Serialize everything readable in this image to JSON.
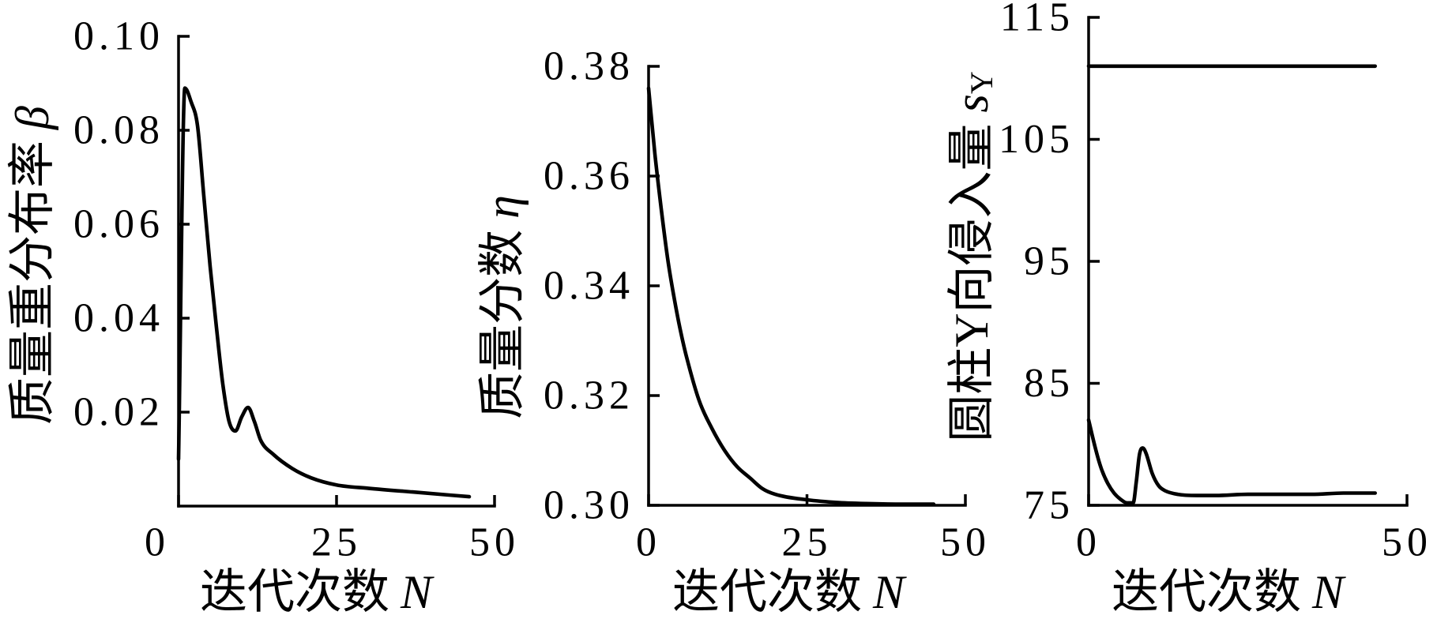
{
  "figure": {
    "background": "#ffffff"
  },
  "colors": {
    "line": "#000000",
    "axis": "#000000"
  },
  "chart_data": [
    {
      "type": "line",
      "xlabel": "迭代次数",
      "xlabel_var": "N",
      "ylabel": "质量重分布率",
      "ylabel_var": "β",
      "xlim": [
        0,
        50
      ],
      "ylim": [
        0,
        0.1
      ],
      "xticks": [
        0,
        25,
        50
      ],
      "xticklabels": [
        "0",
        "25",
        "50"
      ],
      "yticks": [
        0.02,
        0.04,
        0.06,
        0.08,
        0.1
      ],
      "yticklabels": [
        "0.02",
        "0.04",
        "0.06",
        "0.08",
        "0.10"
      ],
      "grid": false,
      "series": [
        {
          "x": [
            0,
            1,
            2,
            3,
            4,
            5,
            6,
            7,
            8,
            9,
            10,
            11,
            12,
            13,
            15,
            18,
            21,
            25,
            30,
            37,
            46
          ],
          "y": [
            0.01,
            0.089,
            0.086,
            0.081,
            0.066,
            0.051,
            0.038,
            0.026,
            0.018,
            0.016,
            0.019,
            0.021,
            0.018,
            0.014,
            0.011,
            0.008,
            0.006,
            0.0045,
            0.0038,
            0.003,
            0.002
          ]
        }
      ]
    },
    {
      "type": "line",
      "xlabel": "迭代次数",
      "xlabel_var": "N",
      "ylabel": "质量分数",
      "ylabel_var": "η",
      "xlim": [
        0,
        50
      ],
      "ylim": [
        0.3,
        0.38
      ],
      "xticks": [
        0,
        25,
        50
      ],
      "xticklabels": [
        "0",
        "25",
        "50"
      ],
      "yticks": [
        0.3,
        0.32,
        0.34,
        0.36,
        0.38
      ],
      "yticklabels": [
        "0.30",
        "0.32",
        "0.34",
        "0.36",
        "0.38"
      ],
      "grid": false,
      "series": [
        {
          "x": [
            0,
            1,
            2,
            3,
            4,
            5,
            6,
            8,
            10,
            12,
            14,
            16,
            18,
            20,
            25,
            30,
            35,
            40,
            45
          ],
          "y": [
            0.376,
            0.364,
            0.354,
            0.345,
            0.338,
            0.332,
            0.327,
            0.319,
            0.314,
            0.31,
            0.307,
            0.305,
            0.303,
            0.302,
            0.301,
            0.3005,
            0.3003,
            0.3002,
            0.3002
          ]
        }
      ]
    },
    {
      "type": "line",
      "xlabel": "迭代次数",
      "xlabel_var": "N",
      "ylabel": "圆柱Y向侵入量",
      "ylabel_var": "s",
      "ylabel_sub": "Y",
      "xlim": [
        0,
        50
      ],
      "ylim": [
        75,
        115
      ],
      "xticks": [
        0,
        50
      ],
      "xticklabels": [
        "0",
        "50"
      ],
      "yticks": [
        75,
        85,
        95,
        105,
        115
      ],
      "yticklabels": [
        "75",
        "85",
        "95",
        "105",
        "115"
      ],
      "grid": false,
      "series": [
        {
          "x": [
            0,
            45
          ],
          "y": [
            111,
            111
          ]
        },
        {
          "x": [
            0,
            1,
            2,
            3,
            4,
            5,
            6,
            7,
            7.5,
            8,
            8.5,
            9,
            10,
            11,
            12,
            14,
            17,
            20,
            25,
            30,
            35,
            40,
            45
          ],
          "y": [
            82.0,
            79.8,
            78.0,
            76.8,
            76.0,
            75.5,
            75.2,
            75.2,
            77.0,
            79.2,
            79.7,
            79.3,
            77.6,
            76.6,
            76.2,
            75.9,
            75.8,
            75.8,
            75.9,
            75.9,
            75.9,
            76.0,
            76.0
          ]
        }
      ]
    }
  ]
}
